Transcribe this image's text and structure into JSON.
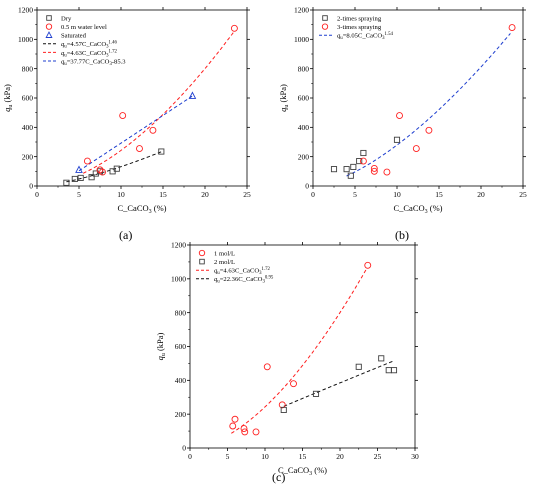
{
  "chart_data": [
    {
      "panel": "(a)",
      "type": "scatter",
      "xlabel": "C_CaCO3 (%)",
      "ylabel": "qu (kPa)",
      "xlim": [
        0,
        25
      ],
      "ylim": [
        0,
        1200
      ],
      "xticks": [
        "0",
        "5",
        "10",
        "15",
        "20",
        "25"
      ],
      "yticks": [
        "0",
        "200",
        "400",
        "600",
        "800",
        "1000",
        "1200"
      ],
      "legend_position": "top-left",
      "series": [
        {
          "name": "Dry",
          "marker": "square",
          "color": "#404040",
          "x": [
            3.5,
            4.5,
            5.2,
            6.5,
            7.0,
            7.5,
            9.0,
            9.5,
            14.8
          ],
          "y": [
            22,
            48,
            55,
            60,
            85,
            100,
            100,
            118,
            235
          ]
        },
        {
          "name": "0.5 m water level",
          "marker": "circle",
          "color": "#ff2020",
          "x": [
            6.0,
            7.5,
            7.8,
            10.2,
            12.2,
            13.8,
            23.5
          ],
          "y": [
            170,
            110,
            95,
            480,
            255,
            380,
            1075
          ]
        },
        {
          "name": "Saturated",
          "marker": "triangle",
          "color": "#1f3fcf",
          "x": [
            5.0,
            18.5
          ],
          "y": [
            110,
            615
          ]
        },
        {
          "name": "qu=4.57C_CaCO3^1.46",
          "line": "dashed",
          "color": "#111111",
          "fit": {
            "a": 4.57,
            "b": 1.46
          },
          "xrange": [
            3.5,
            15
          ]
        },
        {
          "name": "qu=4.63C_CaCO3^1.72",
          "line": "dashed",
          "color": "#ff2020",
          "fit": {
            "a": 4.63,
            "b": 1.72
          },
          "xrange": [
            5.5,
            23.5
          ]
        },
        {
          "name": "qu=37.77C_CaCO3-85.3",
          "line": "dashed",
          "color": "#1f3fcf",
          "linear": {
            "m": 37.77,
            "c": -85.3
          },
          "xrange": [
            5,
            18.5
          ]
        }
      ]
    },
    {
      "panel": "(b)",
      "type": "scatter",
      "xlabel": "C_CaCO3 (%)",
      "ylabel": "qu (kPa)",
      "xlim": [
        0,
        25
      ],
      "ylim": [
        0,
        1200
      ],
      "xticks": [
        "0",
        "5",
        "10",
        "15",
        "20",
        "25"
      ],
      "yticks": [
        "0",
        "200",
        "400",
        "600",
        "800",
        "1000",
        "1200"
      ],
      "legend_position": "top-left",
      "series": [
        {
          "name": "2-times spraying",
          "marker": "square",
          "color": "#404040",
          "x": [
            2.5,
            4.0,
            4.5,
            4.8,
            5.5,
            6.0,
            10.0
          ],
          "y": [
            115,
            115,
            70,
            130,
            170,
            225,
            315
          ]
        },
        {
          "name": "3-times spraying",
          "marker": "circle",
          "color": "#ff2020",
          "x": [
            6.0,
            7.3,
            7.3,
            8.8,
            10.3,
            12.3,
            13.8,
            23.7
          ],
          "y": [
            170,
            120,
            100,
            95,
            480,
            255,
            380,
            1080
          ]
        },
        {
          "name": "qu=8.05C_CaCO3^1.54",
          "line": "dashed",
          "color": "#1f3fcf",
          "fit": {
            "a": 8.05,
            "b": 1.54
          },
          "xrange": [
            4,
            23.5
          ]
        }
      ]
    },
    {
      "panel": "(c)",
      "type": "scatter",
      "xlabel": "C_CaCO3 (%)",
      "ylabel": "qu (kPa)",
      "xlim": [
        0,
        30
      ],
      "ylim": [
        0,
        1200
      ],
      "xticks": [
        "0",
        "5",
        "10",
        "15",
        "20",
        "25",
        "30"
      ],
      "yticks": [
        "0",
        "200",
        "400",
        "600",
        "800",
        "1000",
        "1200"
      ],
      "legend_position": "top-left",
      "series": [
        {
          "name": "1 mol/L",
          "marker": "circle",
          "color": "#ff2020",
          "x": [
            5.7,
            6.0,
            7.2,
            7.3,
            8.8,
            10.3,
            12.3,
            13.8,
            23.7
          ],
          "y": [
            130,
            170,
            115,
            95,
            95,
            480,
            255,
            380,
            1080
          ]
        },
        {
          "name": "2 mol/L",
          "marker": "square",
          "color": "#404040",
          "x": [
            12.5,
            16.8,
            22.5,
            25.5,
            26.5,
            27.2
          ],
          "y": [
            225,
            320,
            480,
            530,
            460,
            460
          ]
        },
        {
          "name": "qu=4.63C_CaCO3^1.72",
          "line": "dashed",
          "color": "#ff2020",
          "fit": {
            "a": 4.63,
            "b": 1.72
          },
          "xrange": [
            5.5,
            23.5
          ]
        },
        {
          "name": "qu=22.36C_CaCO3^0.95",
          "line": "dashed",
          "color": "#111111",
          "fit": {
            "a": 22.36,
            "b": 0.95
          },
          "xrange": [
            12.5,
            27
          ]
        }
      ]
    }
  ],
  "labels": {
    "panel_a": "(a)",
    "panel_b": "(b)",
    "panel_c": "(c)",
    "x_title": "C_CaCO",
    "x_title_sub": "3",
    "x_title_unit": " (%)",
    "y_title_q": "q",
    "y_title_sub": "u",
    "y_title_unit": " (kPa)"
  },
  "legends": {
    "a": [
      {
        "kind": "square",
        "color": "#404040",
        "text": "Dry"
      },
      {
        "kind": "circle",
        "color": "#ff2020",
        "text": "0.5 m water level"
      },
      {
        "kind": "triangle",
        "color": "#1f3fcf",
        "text": "Saturated"
      },
      {
        "kind": "line",
        "color": "#111111",
        "pre": "q",
        "sub": "u",
        "mid": "=4.57C_CaCO",
        "sub2": "3",
        "sup": "1.46"
      },
      {
        "kind": "line",
        "color": "#ff2020",
        "pre": "q",
        "sub": "u",
        "mid": "=4.63C_CaCO",
        "sub2": "3",
        "sup": "1.72"
      },
      {
        "kind": "line",
        "color": "#1f3fcf",
        "pre": "q",
        "sub": "u",
        "mid": "=37.77C_CaCO",
        "sub2": "3",
        "sup": "",
        "post": "-85.3"
      }
    ],
    "b": [
      {
        "kind": "square",
        "color": "#404040",
        "text": "2-times spraying"
      },
      {
        "kind": "circle",
        "color": "#ff2020",
        "text": "3-times spraying"
      },
      {
        "kind": "line",
        "color": "#1f3fcf",
        "pre": "q",
        "sub": "u",
        "mid": "=8.05C_CaCO",
        "sub2": "3",
        "sup": "1.54"
      }
    ],
    "c": [
      {
        "kind": "circle",
        "color": "#ff2020",
        "text": "1 mol/L"
      },
      {
        "kind": "square",
        "color": "#404040",
        "text": "2 mol/L"
      },
      {
        "kind": "line",
        "color": "#ff2020",
        "pre": "q",
        "sub": "u",
        "mid": "=4.63C_CaCO",
        "sub2": "3",
        "sup": "1.72"
      },
      {
        "kind": "line",
        "color": "#111111",
        "pre": "q",
        "sub": "u",
        "mid": "=22.36C_CaCO",
        "sub2": "3",
        "sup": "0.95"
      }
    ]
  }
}
